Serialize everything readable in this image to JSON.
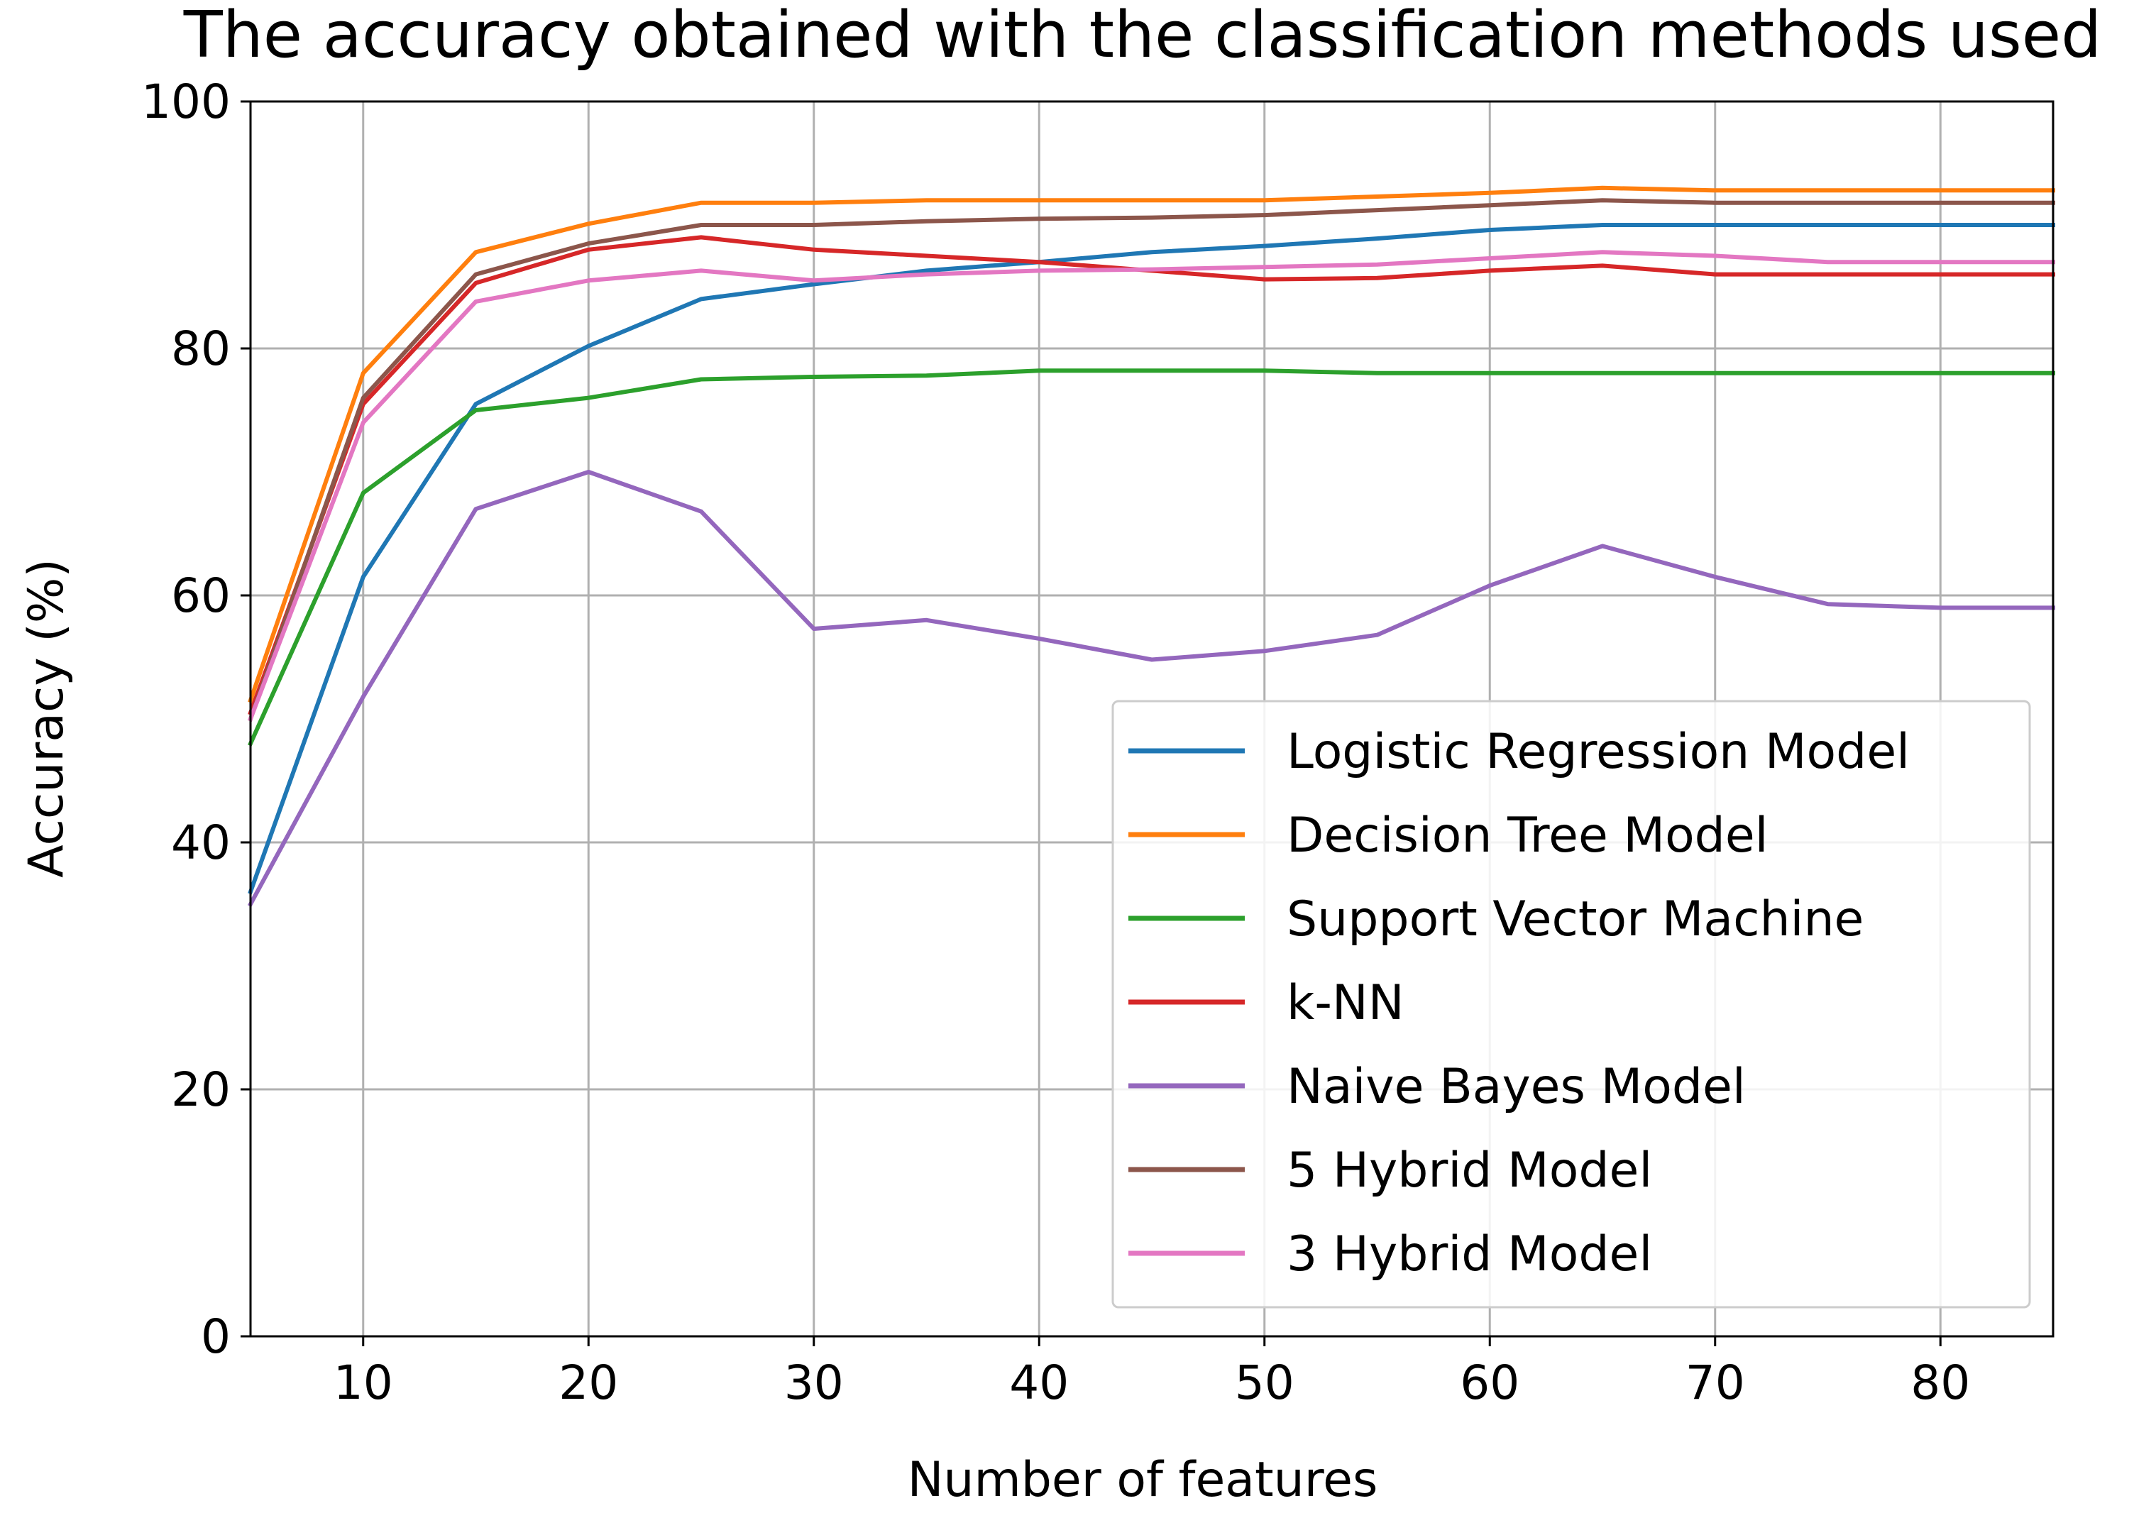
{
  "chart_data": {
    "type": "line",
    "title": "The accuracy obtained with the classification methods used",
    "xlabel": "Number of features",
    "ylabel": "Accuracy (%)",
    "xlim": [
      5,
      85
    ],
    "ylim": [
      0,
      100
    ],
    "xticks": [
      10,
      20,
      30,
      40,
      50,
      60,
      70,
      80
    ],
    "yticks": [
      0,
      20,
      40,
      60,
      80,
      100
    ],
    "grid": true,
    "legend_position": "lower-right",
    "x": [
      5,
      10,
      15,
      20,
      25,
      30,
      35,
      40,
      45,
      50,
      55,
      60,
      65,
      70,
      75,
      80,
      85
    ],
    "series": [
      {
        "name": "Logistic Regression Model",
        "color": "#1f77b4",
        "values": [
          36,
          61.5,
          75.5,
          80.2,
          84,
          85.2,
          86.3,
          87,
          87.8,
          88.3,
          88.9,
          89.6,
          90,
          90,
          90,
          90,
          90
        ]
      },
      {
        "name": "Decision Tree Model",
        "color": "#ff7f0e",
        "values": [
          51.5,
          78,
          87.8,
          90.1,
          91.8,
          91.8,
          92,
          92,
          92,
          92,
          92.3,
          92.6,
          93,
          92.8,
          92.8,
          92.8,
          92.8
        ]
      },
      {
        "name": "Support Vector Machine",
        "color": "#2ca02c",
        "values": [
          48,
          68.3,
          75,
          76,
          77.5,
          77.7,
          77.8,
          78.2,
          78.2,
          78.2,
          78,
          78,
          78,
          78,
          78,
          78,
          78
        ]
      },
      {
        "name": "k-NN",
        "color": "#d62728",
        "values": [
          50.5,
          75.5,
          85.3,
          88,
          89,
          88,
          87.5,
          87,
          86.3,
          85.6,
          85.7,
          86.3,
          86.7,
          86,
          86,
          86,
          86
        ]
      },
      {
        "name": "Naive Bayes Model",
        "color": "#9467bd",
        "values": [
          35,
          51.8,
          67,
          70,
          66.8,
          57.3,
          58,
          56.5,
          54.8,
          55.5,
          56.8,
          60.8,
          64,
          61.5,
          59.3,
          59,
          59
        ]
      },
      {
        "name": "5 Hybrid Model",
        "color": "#8c564b",
        "values": [
          50,
          76,
          86,
          88.5,
          90,
          90,
          90.3,
          90.5,
          90.6,
          90.8,
          91.2,
          91.6,
          92,
          91.8,
          91.8,
          91.8,
          91.8
        ]
      },
      {
        "name": "3 Hybrid Model",
        "color": "#e377c2",
        "values": [
          50,
          74,
          83.8,
          85.5,
          86.3,
          85.5,
          86,
          86.3,
          86.4,
          86.6,
          86.8,
          87.3,
          87.8,
          87.5,
          87,
          87,
          87
        ]
      }
    ]
  }
}
